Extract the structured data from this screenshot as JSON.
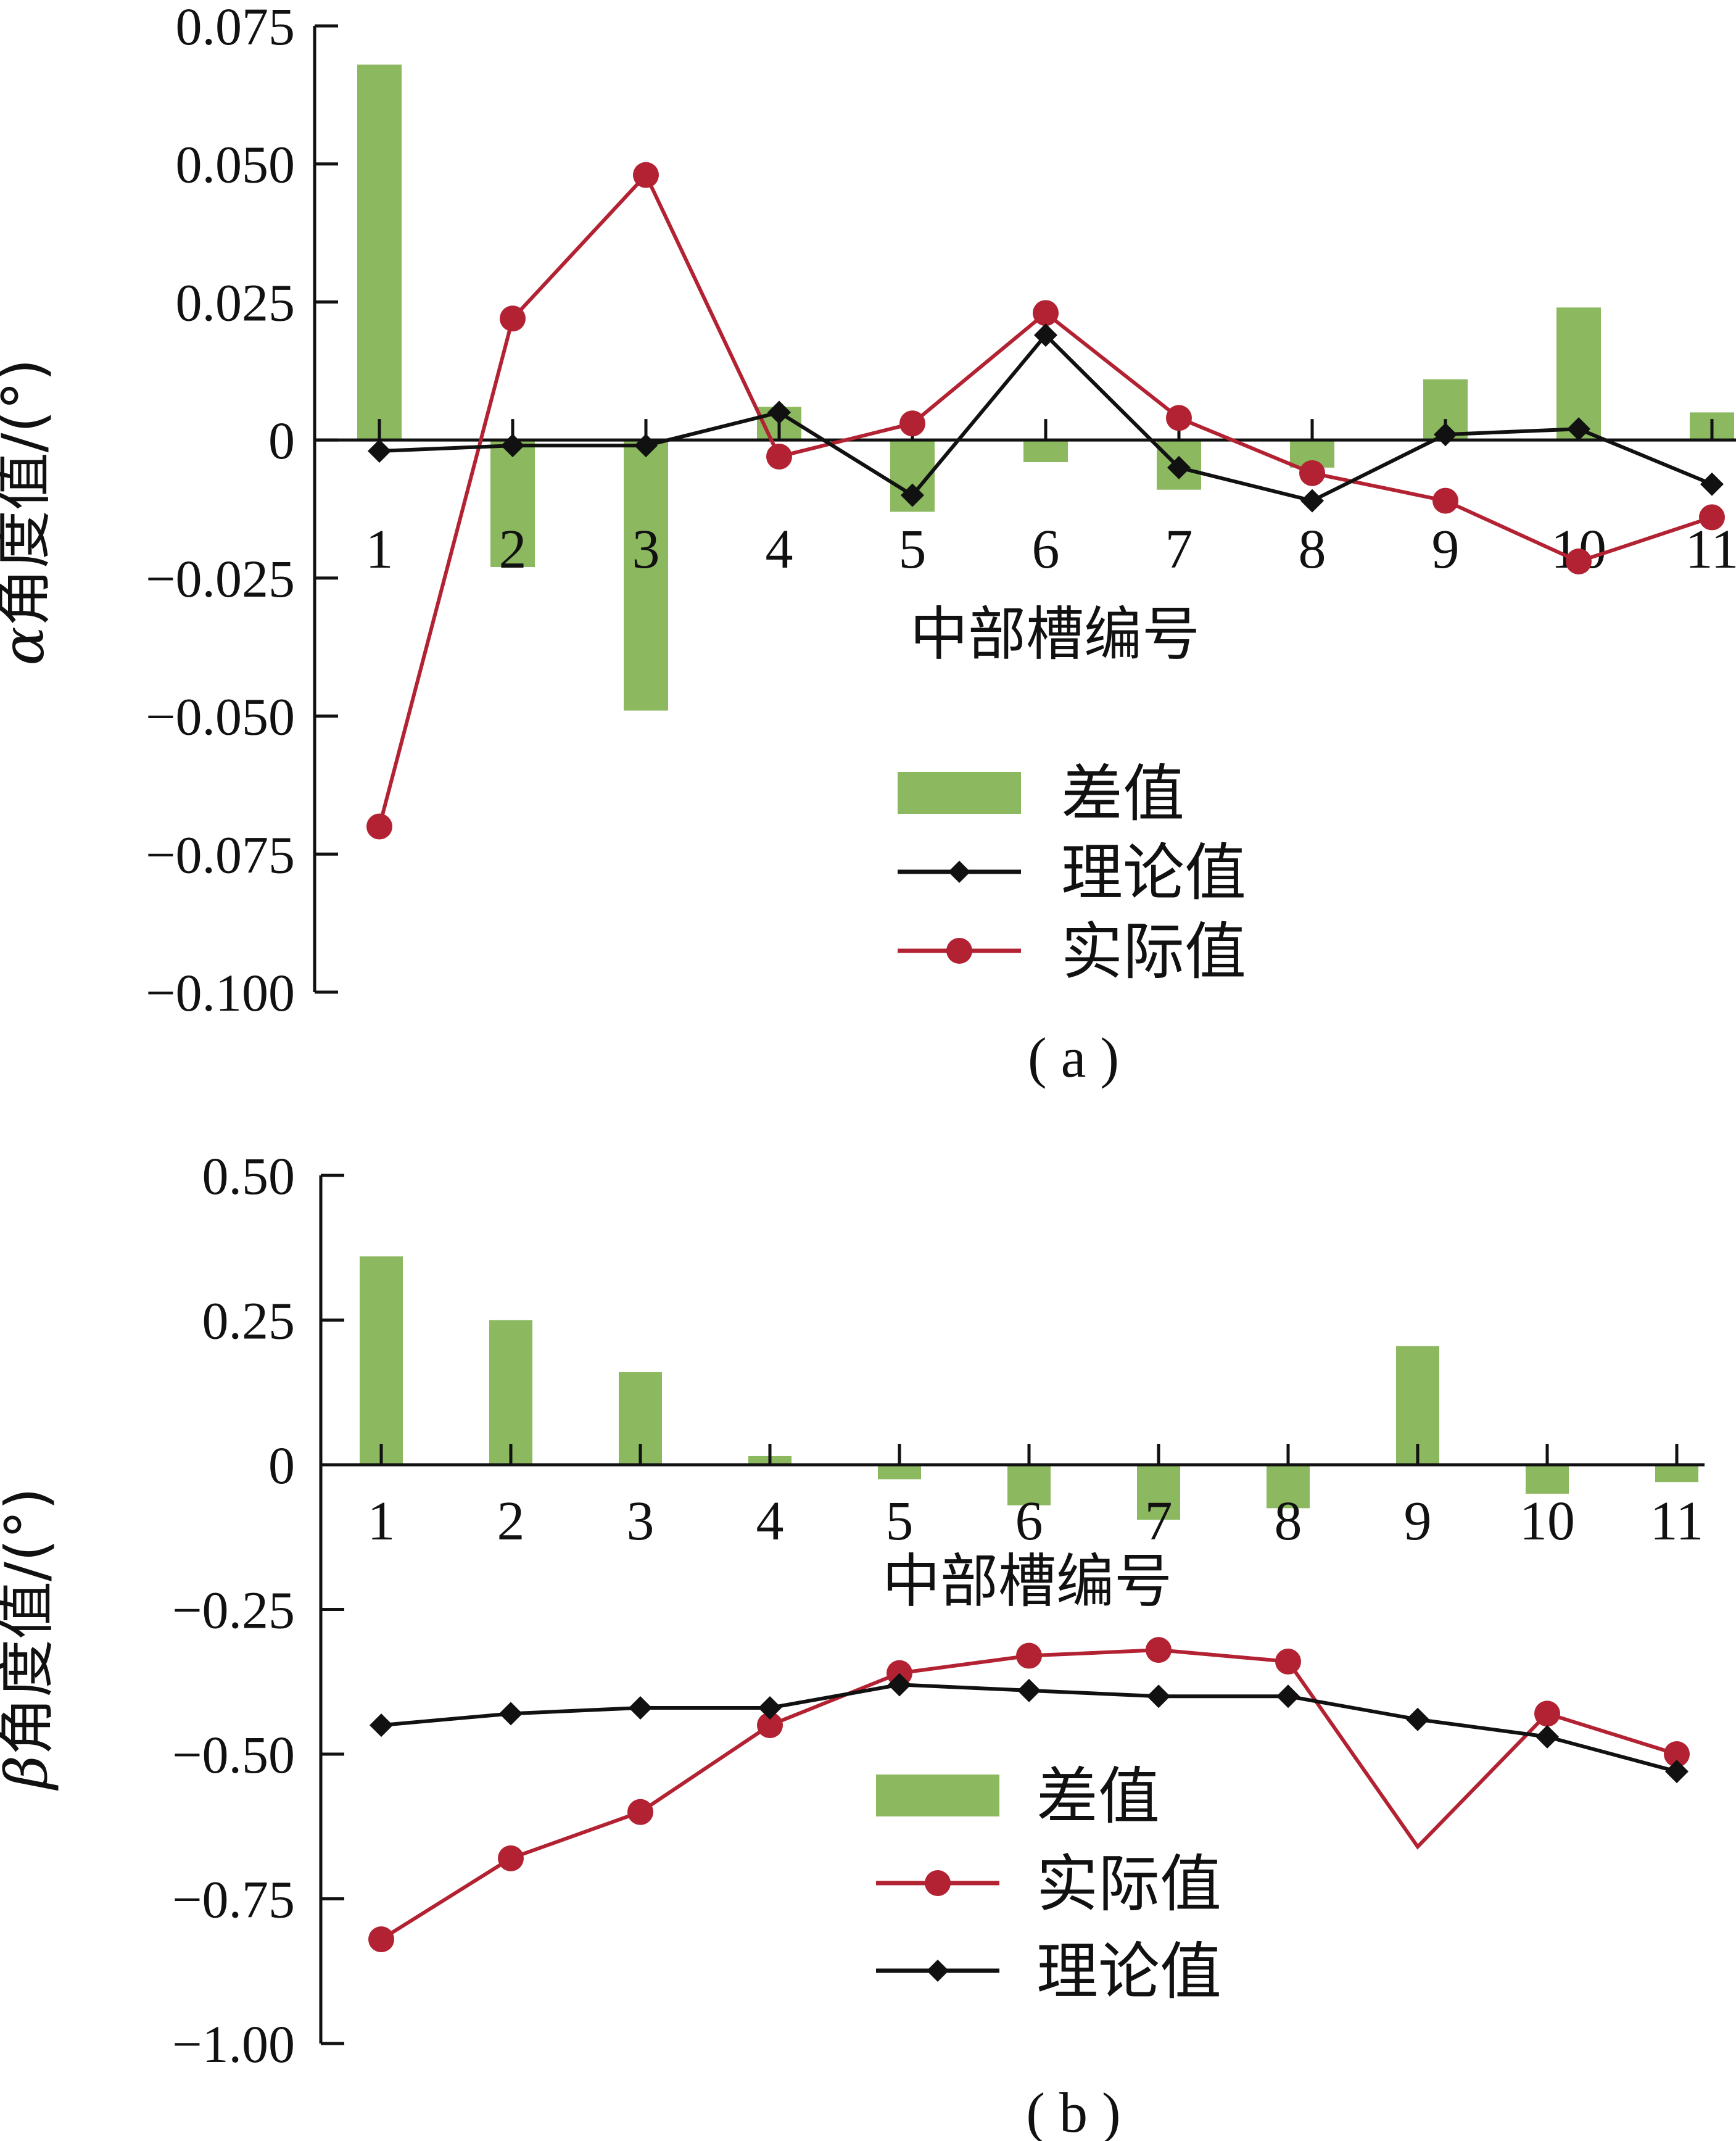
{
  "chart_data": [
    {
      "type": "bar",
      "panel_label": "( a )",
      "categories": [
        "1",
        "2",
        "3",
        "4",
        "5",
        "6",
        "7",
        "8",
        "9",
        "10",
        "11"
      ],
      "xlabel": "中部槽编号",
      "ylabel_symbol": "α",
      "ylabel_text": "角度值/(°)",
      "ylim": [
        -0.1,
        0.075
      ],
      "yticks": [
        0.075,
        0.05,
        0.025,
        0,
        -0.025,
        -0.05,
        -0.075,
        -0.1
      ],
      "ytick_labels": [
        "0.075",
        "0.050",
        "0.025",
        "0",
        "−0.025",
        "−0.050",
        "−0.075",
        "−0.100"
      ],
      "legend_position": "bottom-center",
      "legend_order": [
        "差值",
        "理论值",
        "实际值"
      ],
      "series": [
        {
          "name": "差值",
          "kind": "bar",
          "color": "#8cb85f",
          "values": [
            0.068,
            -0.023,
            -0.049,
            0.006,
            -0.013,
            -0.004,
            -0.009,
            -0.005,
            0.011,
            0.024,
            0.005
          ]
        },
        {
          "name": "理论值",
          "kind": "line",
          "marker": "diamond",
          "color": "#111111",
          "values": [
            -0.002,
            -0.001,
            -0.001,
            0.005,
            -0.01,
            0.019,
            -0.005,
            -0.011,
            0.001,
            0.002,
            -0.008
          ]
        },
        {
          "name": "实际值",
          "kind": "line",
          "marker": "circle",
          "color": "#b32232",
          "values": [
            -0.07,
            0.022,
            0.048,
            -0.003,
            0.003,
            0.023,
            0.004,
            -0.006,
            -0.011,
            -0.022,
            -0.014
          ]
        }
      ]
    },
    {
      "type": "bar",
      "panel_label": "( b )",
      "categories": [
        "1",
        "2",
        "3",
        "4",
        "5",
        "6",
        "7",
        "8",
        "9",
        "10",
        "11"
      ],
      "xlabel": "中部槽编号",
      "ylabel_symbol": "β",
      "ylabel_text": "角度值/(°)",
      "ylim": [
        -1.0,
        0.5
      ],
      "yticks": [
        0.5,
        0.25,
        0,
        -0.25,
        -0.5,
        -0.75,
        -1.0
      ],
      "ytick_labels": [
        "0.50",
        "0.25",
        "0",
        "−0.25",
        "−0.50",
        "−0.75",
        "−1.00"
      ],
      "legend_position": "bottom-center",
      "legend_order": [
        "差值",
        "实际值",
        "理论值"
      ],
      "series": [
        {
          "name": "差值",
          "kind": "bar",
          "color": "#8cb85f",
          "values": [
            0.36,
            0.25,
            0.16,
            0.015,
            -0.025,
            -0.07,
            -0.095,
            -0.075,
            0.205,
            -0.05,
            -0.03
          ]
        },
        {
          "name": "实际值",
          "kind": "line",
          "marker": "circle",
          "color": "#b32232",
          "values": [
            -0.82,
            -0.68,
            -0.6,
            -0.45,
            -0.36,
            -0.33,
            -0.32,
            -0.34,
            -0.66,
            -0.43,
            -0.5
          ]
        },
        {
          "name": "理论值",
          "kind": "line",
          "marker": "diamond",
          "color": "#111111",
          "values": [
            -0.45,
            -0.43,
            -0.42,
            -0.42,
            -0.38,
            -0.39,
            -0.4,
            -0.4,
            -0.44,
            -0.47,
            -0.53
          ]
        }
      ]
    }
  ]
}
